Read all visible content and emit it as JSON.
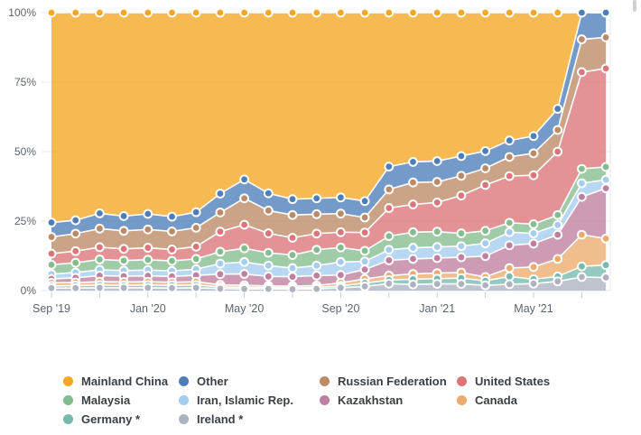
{
  "page": {
    "background": "#ffffff"
  },
  "axis": {
    "label_color": "#5c6370",
    "gridline_color": "#e9eaec",
    "tick_color": "#c6cbd4",
    "right_border_color": "#e2e4e8"
  },
  "chart_data": {
    "type": "area",
    "stacking": "percent",
    "title": "",
    "xlabel": "",
    "ylabel": "",
    "ylim": [
      0,
      100
    ],
    "grid": true,
    "legend_position": "bottom",
    "y_ticks": [
      {
        "v": 100,
        "label": "100%"
      },
      {
        "v": 75,
        "label": "75%"
      },
      {
        "v": 50,
        "label": "50%"
      },
      {
        "v": 25,
        "label": "25%"
      },
      {
        "v": 0,
        "label": "0%"
      }
    ],
    "x": [
      "Sep '19",
      "Oct '19",
      "Nov '19",
      "Dec '19",
      "Jan '20",
      "Feb '20",
      "Mar '20",
      "Apr '20",
      "May '20",
      "Jun '20",
      "Jul '20",
      "Aug '20",
      "Sep '20",
      "Oct '20",
      "Nov '20",
      "Dec '20",
      "Jan '21",
      "Feb '21",
      "Mar '21",
      "Apr '21",
      "May '21",
      "Jun '21",
      "Jul '21",
      "Aug '21"
    ],
    "x_tick_labels": [
      {
        "i": 0,
        "label": "Sep '19"
      },
      {
        "i": 4,
        "label": "Jan '20"
      },
      {
        "i": 8,
        "label": "May '20"
      },
      {
        "i": 12,
        "label": "Sep '20"
      },
      {
        "i": 16,
        "label": "Jan '21"
      },
      {
        "i": 20,
        "label": "May '21"
      }
    ],
    "series": [
      {
        "name": "Mainland China",
        "color": "#f5a623",
        "values": [
          75.5,
          74.7,
          72.2,
          73.2,
          72.4,
          73.4,
          71.8,
          65.1,
          60.0,
          65.0,
          67.1,
          66.8,
          66.5,
          67.8,
          55.4,
          53.7,
          53.4,
          51.6,
          49.8,
          46.0,
          44.4,
          34.6,
          0,
          0
        ]
      },
      {
        "name": "Other",
        "color": "#4d7eba",
        "values": [
          5.2,
          4.8,
          5.5,
          5.3,
          5.6,
          5.3,
          5.6,
          6.8,
          6.8,
          6.2,
          5.7,
          5.7,
          5.8,
          5.9,
          8.2,
          7.4,
          7.5,
          7.1,
          6.2,
          5.9,
          6.2,
          7.6,
          9.6,
          8.9
        ]
      },
      {
        "name": "Russian Federation",
        "color": "#bc8a66",
        "values": [
          6.0,
          6.3,
          6.7,
          6.5,
          6.6,
          6.5,
          6.8,
          6.9,
          9.5,
          8.2,
          8.2,
          7.0,
          6.7,
          5.4,
          6.7,
          7.9,
          7.4,
          7.1,
          6.0,
          6.9,
          7.9,
          7.8,
          11.8,
          11.2
        ]
      },
      {
        "name": "United States",
        "color": "#db7578",
        "values": [
          4.0,
          4.2,
          4.4,
          4.2,
          4.3,
          4.1,
          4.4,
          7.2,
          8.5,
          7.0,
          6.2,
          5.8,
          5.5,
          6.6,
          10.1,
          10.0,
          10.5,
          13.6,
          16.5,
          16.8,
          17.6,
          22.8,
          34.8,
          35.4
        ]
      },
      {
        "name": "Malaysia",
        "color": "#84bd8d",
        "values": [
          3.4,
          3.5,
          3.7,
          3.6,
          3.7,
          3.6,
          3.7,
          4.3,
          4.9,
          4.6,
          4.7,
          5.7,
          5.2,
          3.8,
          4.9,
          5.6,
          5.5,
          4.6,
          4.5,
          3.4,
          3.3,
          3.6,
          5.2,
          4.6
        ]
      },
      {
        "name": "Iran, Islamic Rep.",
        "color": "#a3ccef",
        "values": [
          1.7,
          1.9,
          2.1,
          2.0,
          2.1,
          2.0,
          2.2,
          3.8,
          4.3,
          3.9,
          3.1,
          3.6,
          4.7,
          2.9,
          3.8,
          4.0,
          4.0,
          4.0,
          4.6,
          4.7,
          3.7,
          3.5,
          4.9,
          3.1
        ]
      },
      {
        "name": "Kazakhstan",
        "color": "#c07fa0",
        "values": [
          1.4,
          1.7,
          2.2,
          2.1,
          2.1,
          2.1,
          2.3,
          3.8,
          4.1,
          3.4,
          3.4,
          3.6,
          2.8,
          3.4,
          5.5,
          5.4,
          5.4,
          5.5,
          7.5,
          8.2,
          8.4,
          8.7,
          13.6,
          18.1
        ]
      },
      {
        "name": "Canada",
        "color": "#ecaa6c",
        "values": [
          1.1,
          1.1,
          1.2,
          1.2,
          1.2,
          1.1,
          1.2,
          0.8,
          0.8,
          0.6,
          0.6,
          0.7,
          1.1,
          1.5,
          1.6,
          1.9,
          2.0,
          2.0,
          1.4,
          3.0,
          4.4,
          6.3,
          11.4,
          9.5
        ]
      },
      {
        "name": "Germany *",
        "color": "#76baae",
        "values": [
          0.8,
          0.9,
          1.0,
          0.9,
          1.0,
          1.0,
          1.0,
          0.6,
          0.5,
          0.5,
          0.5,
          0.5,
          0.7,
          1.2,
          1.3,
          1.9,
          1.9,
          2.1,
          1.6,
          2.8,
          1.6,
          1.8,
          3.8,
          4.5
        ]
      },
      {
        "name": "Ireland *",
        "color": "#adb2c1",
        "values": [
          0.9,
          0.9,
          1.0,
          1.0,
          1.0,
          0.9,
          1.0,
          0.7,
          0.6,
          0.6,
          0.5,
          0.6,
          1.0,
          1.5,
          2.5,
          2.2,
          2.4,
          2.4,
          1.9,
          2.3,
          2.5,
          3.3,
          4.9,
          4.7
        ]
      }
    ]
  }
}
